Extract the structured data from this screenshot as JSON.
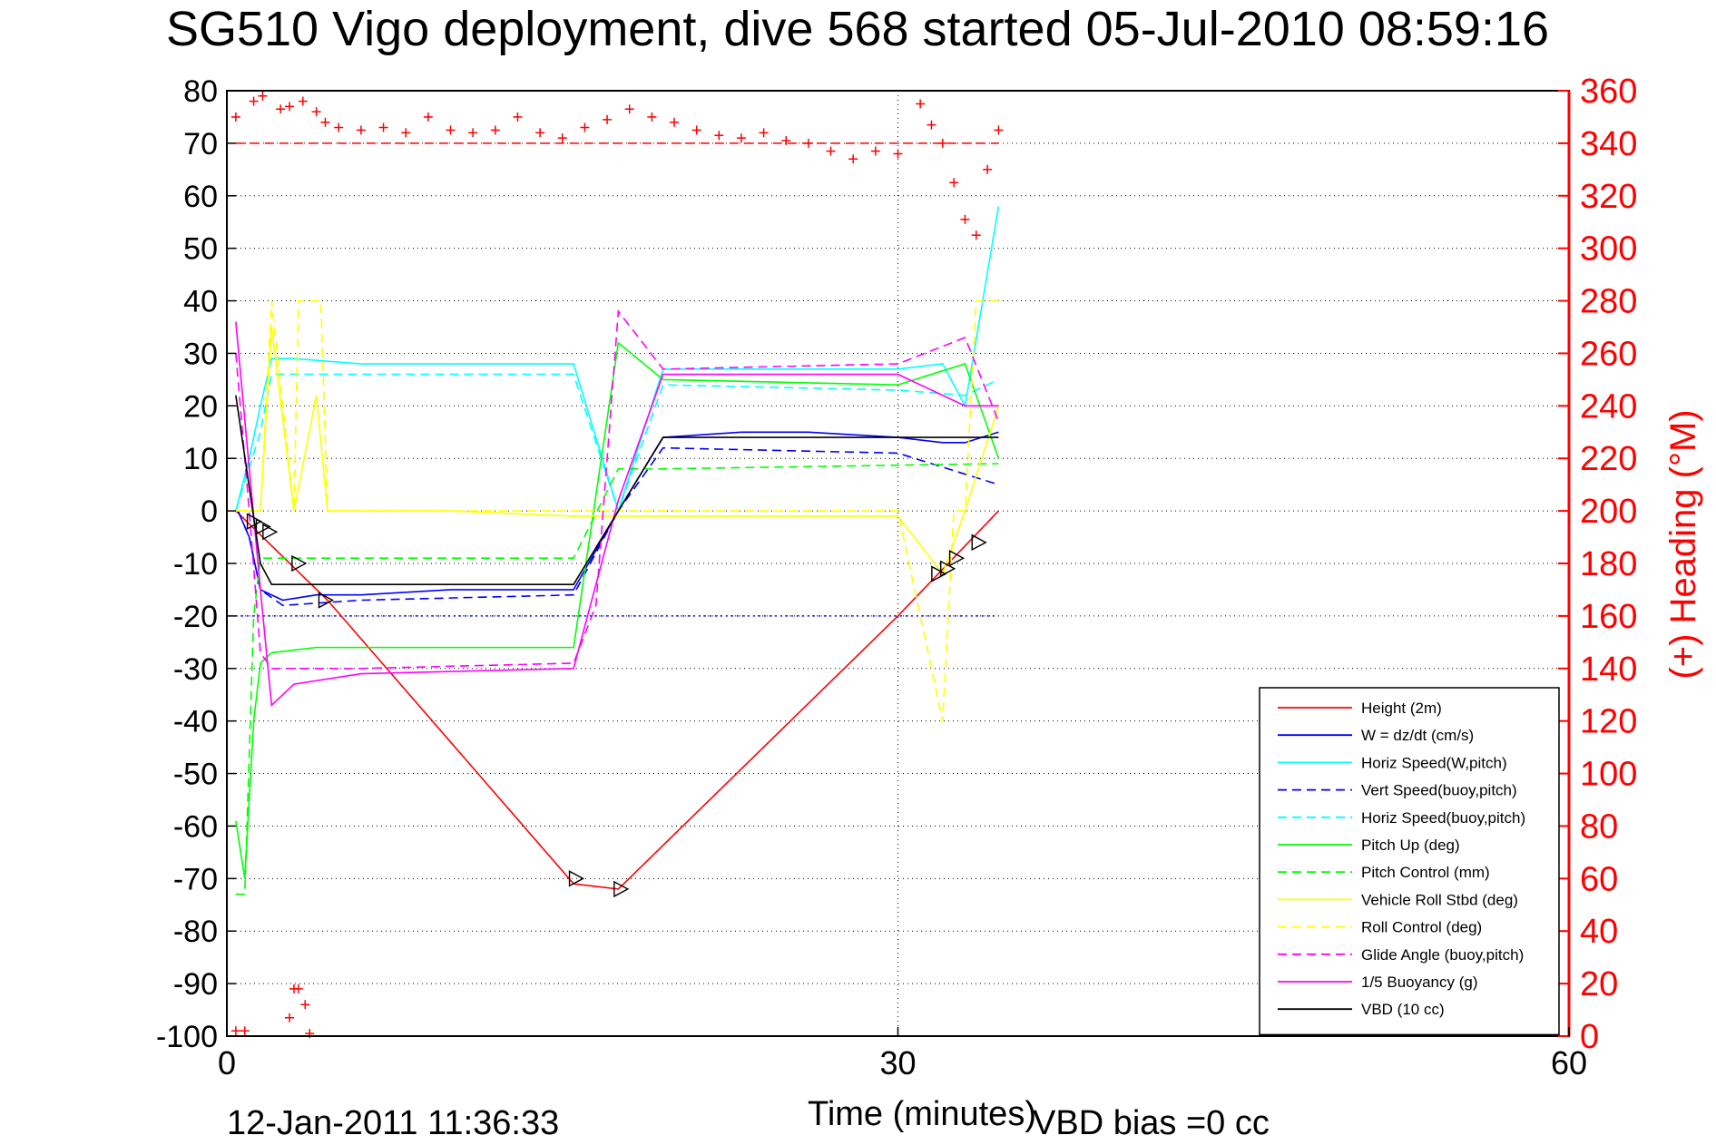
{
  "chart_data": {
    "type": "line",
    "title": "SG510 Vigo deployment, dive 568 started 05-Jul-2010 08:59:16",
    "xlabel": "Time (minutes)",
    "ylabel_right": "(+) Heading (°M)",
    "xlim": [
      0,
      60
    ],
    "ylim_left": [
      -100,
      80
    ],
    "ylim_right": [
      0,
      360
    ],
    "x_ticks": [
      "0",
      "30",
      "60"
    ],
    "y_ticks_left": [
      "80",
      "70",
      "60",
      "50",
      "40",
      "30",
      "20",
      "10",
      "0",
      "-10",
      "-20",
      "-30",
      "-40",
      "-50",
      "-60",
      "-70",
      "-80",
      "-90",
      "-100"
    ],
    "y_ticks_right": [
      "360",
      "340",
      "320",
      "300",
      "280",
      "260",
      "240",
      "220",
      "200",
      "180",
      "160",
      "140",
      "120",
      "100",
      "80",
      "60",
      "40",
      "20",
      "0"
    ],
    "grid": true,
    "legend_position": "bottom-right",
    "footer_date": "12-Jan-2011 11:36:33",
    "footer_bias": "VBD bias =0 cc",
    "series": [
      {
        "name": "Height (2m)",
        "color": "#ff0000",
        "style": "solid",
        "x": [
          0.4,
          4.5,
          15.5,
          17.5,
          30,
          34.5
        ],
        "y": [
          0,
          -17,
          -71,
          -72,
          -20,
          0
        ]
      },
      {
        "name": "W = dz/dt (cm/s)",
        "color": "#0000ff",
        "style": "solid",
        "x": [
          0.5,
          1,
          1.5,
          2.5,
          4,
          6,
          10,
          15.5,
          17.5,
          19.5,
          23,
          26,
          30,
          32,
          33,
          34.5
        ],
        "y": [
          0,
          -5,
          -15,
          -17,
          -16,
          -16,
          -15,
          -15,
          0,
          14,
          15,
          15,
          14,
          13,
          13,
          15
        ]
      },
      {
        "name": "Horiz Speed(W,pitch)",
        "color": "#00ffff",
        "style": "solid",
        "x": [
          0.4,
          1,
          1.5,
          2,
          3,
          6,
          10,
          15.5,
          17.5,
          19.5,
          25,
          30,
          32,
          33,
          34.5
        ],
        "y": [
          0,
          10,
          20,
          29,
          29,
          28,
          28,
          28,
          0,
          27,
          27,
          27,
          28,
          20,
          58
        ]
      },
      {
        "name": "Vert Speed(buoy,pitch)",
        "color": "#0000ff",
        "style": "dashed",
        "x": [
          0.5,
          1,
          1.5,
          2.5,
          6,
          15.5,
          17.5,
          19.5,
          30,
          34.5
        ],
        "y": [
          0,
          -5,
          -15,
          -18,
          -17,
          -16,
          0,
          12,
          11,
          5
        ]
      },
      {
        "name": "Horiz Speed(buoy,pitch)",
        "color": "#00ffff",
        "style": "dashed",
        "x": [
          0.4,
          1.5,
          2,
          3,
          15.5,
          17.5,
          19.5,
          30,
          33,
          34.5
        ],
        "y": [
          0,
          15,
          26,
          26,
          26,
          0,
          24,
          23,
          22,
          25
        ]
      },
      {
        "name": "Pitch Up (deg)",
        "color": "#00ff00",
        "style": "solid",
        "x": [
          0.4,
          0.8,
          1.2,
          1.5,
          2,
          4,
          10,
          15.5,
          17.5,
          19.5,
          30,
          33,
          34.5
        ],
        "y": [
          -59,
          -70,
          -40,
          -29,
          -27,
          -26,
          -26,
          -26,
          32,
          25,
          24,
          28,
          10
        ]
      },
      {
        "name": "Pitch Control (mm)",
        "color": "#00ff00",
        "style": "dashed",
        "x": [
          0.4,
          0.8,
          1.2,
          1.5,
          15.5,
          17.5,
          19.5,
          34.5
        ],
        "y": [
          -73,
          -73,
          -20,
          -9,
          -9,
          8,
          8,
          9
        ]
      },
      {
        "name": "Vehicle Roll Stbd (deg)",
        "color": "#ffff00",
        "style": "solid",
        "x": [
          0.4,
          1.5,
          2,
          3,
          4,
          4.5,
          10,
          15.5,
          17.5,
          20,
          25,
          30,
          32,
          33,
          34.5
        ],
        "y": [
          0,
          0,
          35,
          0,
          22,
          0,
          0,
          -1,
          -1,
          -1,
          -1,
          -1,
          -12,
          0,
          20
        ]
      },
      {
        "name": "Roll Control (deg)",
        "color": "#ffff00",
        "style": "dashed",
        "x": [
          0.4,
          1.5,
          2,
          3,
          3.2,
          4.2,
          4.5,
          15.5,
          17.5,
          30,
          32,
          32.5,
          33,
          33.5,
          34.5
        ],
        "y": [
          0,
          0,
          40,
          0,
          40,
          40,
          0,
          0,
          0,
          0,
          -40,
          0,
          0,
          40,
          40
        ]
      },
      {
        "name": "Glide Angle (buoy,pitch)",
        "color": "#ff00ff",
        "style": "dashed",
        "x": [
          0.4,
          1,
          1.5,
          2,
          6,
          15.5,
          16.5,
          17.5,
          19.5,
          30,
          33,
          34.5
        ],
        "y": [
          30,
          0,
          -27,
          -30,
          -30,
          -29,
          -18,
          38,
          27,
          28,
          33,
          17
        ]
      },
      {
        "name": "1/5 Buoyancy (g)",
        "color": "#ff00ff",
        "style": "solid",
        "x": [
          0.4,
          1.5,
          2,
          3,
          6,
          15.5,
          17.5,
          19.5,
          30,
          33,
          34.5
        ],
        "y": [
          36,
          -15,
          -37,
          -33,
          -31,
          -30,
          2,
          26,
          26,
          20,
          20
        ]
      },
      {
        "name": "VBD (10 cc)",
        "color": "#000000",
        "style": "solid",
        "x": [
          0.4,
          1.5,
          2,
          15.5,
          17.5,
          19.5,
          34.5
        ],
        "y": [
          22,
          -10,
          -14,
          -14,
          0,
          14,
          14
        ]
      }
    ],
    "reference_lines": [
      {
        "color": "#ff0000",
        "style": "dashed",
        "axis": "right",
        "y": 340
      },
      {
        "color": "#0000ff",
        "style": "dotted",
        "axis": "left",
        "y": -20
      }
    ],
    "heading_points_right_axis": {
      "x": [
        0.4,
        1.2,
        1.6,
        2.4,
        2.8,
        3.4,
        4,
        4.4,
        5,
        6,
        7,
        8,
        9,
        10,
        11,
        12,
        13,
        14,
        15,
        16,
        17,
        18,
        19,
        20,
        21,
        22,
        23,
        24,
        25,
        26,
        27,
        28,
        29,
        30,
        31,
        31.5,
        32,
        32.5,
        33,
        33.5,
        34,
        34.5
      ],
      "y": [
        350,
        356,
        358,
        353,
        354,
        356,
        352,
        348,
        346,
        345,
        346,
        344,
        350,
        345,
        344,
        345,
        350,
        344,
        342,
        346,
        349,
        353,
        350,
        348,
        345,
        343,
        342,
        344,
        341,
        340,
        337,
        334,
        337,
        336,
        355,
        347,
        340,
        325,
        311,
        305,
        330,
        345
      ]
    },
    "heading_low_points_right_axis": {
      "x": [
        0.4,
        0.8,
        2.8,
        3.0,
        3.2,
        3.5,
        3.7
      ],
      "y": [
        2,
        2,
        7,
        18,
        18,
        12,
        1
      ]
    },
    "markers": [
      {
        "x": 1.2,
        "y": -2
      },
      {
        "x": 1.6,
        "y": -3
      },
      {
        "x": 1.9,
        "y": -4
      },
      {
        "x": 3.2,
        "y": -10
      },
      {
        "x": 4.4,
        "y": -17
      },
      {
        "x": 15.6,
        "y": -70
      },
      {
        "x": 17.6,
        "y": -72
      },
      {
        "x": 31.8,
        "y": -12
      },
      {
        "x": 32.2,
        "y": -11
      },
      {
        "x": 32.6,
        "y": -9
      },
      {
        "x": 33.6,
        "y": -6
      }
    ]
  }
}
